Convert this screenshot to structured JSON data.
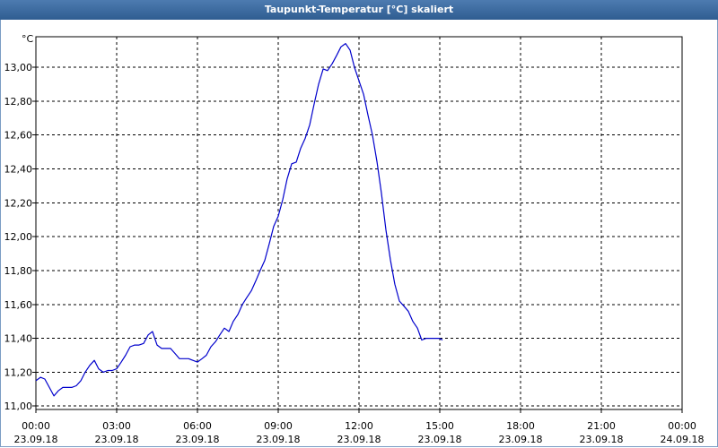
{
  "window": {
    "title": "Taupunkt-Temperatur [°C] skaliert"
  },
  "chart_data": {
    "type": "line",
    "title": "Taupunkt-Temperatur [°C] skaliert",
    "yunit": "°C",
    "ylim": [
      10.98,
      13.18
    ],
    "yticks": [
      "11,00",
      "11,20",
      "11,40",
      "11,60",
      "11,80",
      "12,00",
      "12,20",
      "12,40",
      "12,60",
      "12,80",
      "13,00"
    ],
    "xlim_hours": [
      0,
      24
    ],
    "xticks": [
      {
        "time": "00:00",
        "date": "23.09.18"
      },
      {
        "time": "03:00",
        "date": "23.09.18"
      },
      {
        "time": "06:00",
        "date": "23.09.18"
      },
      {
        "time": "09:00",
        "date": "23.09.18"
      },
      {
        "time": "12:00",
        "date": "23.09.18"
      },
      {
        "time": "15:00",
        "date": "23.09.18"
      },
      {
        "time": "18:00",
        "date": "23.09.18"
      },
      {
        "time": "21:00",
        "date": "23.09.18"
      },
      {
        "time": "00:00",
        "date": "24.09.18"
      }
    ],
    "grid": true,
    "colors": {
      "line": "#0000cc",
      "grid": "#000000",
      "title_bar": "#2f5d91"
    },
    "series": [
      {
        "x": [
          0.0,
          0.17,
          0.33,
          0.5,
          0.67,
          0.83,
          1.0,
          1.17,
          1.33,
          1.5,
          1.67,
          1.83,
          2.0,
          2.17,
          2.33,
          2.5,
          2.67,
          2.83,
          3.0,
          3.17,
          3.33,
          3.5,
          3.67,
          3.83,
          4.0,
          4.17,
          4.33,
          4.5,
          4.67,
          4.83,
          5.0,
          5.17,
          5.33,
          5.5,
          5.67,
          5.83,
          6.0,
          6.17,
          6.33,
          6.5,
          6.67,
          6.83,
          7.0,
          7.17,
          7.33,
          7.5,
          7.67,
          7.83,
          8.0,
          8.17,
          8.33,
          8.5,
          8.67,
          8.83,
          9.0,
          9.17,
          9.33,
          9.5,
          9.67,
          9.83,
          10.0,
          10.17,
          10.33,
          10.5,
          10.67,
          10.83,
          11.0,
          11.17,
          11.33,
          11.5,
          11.67,
          11.83,
          12.0,
          12.17,
          12.33,
          12.5,
          12.67,
          12.83,
          13.0,
          13.17,
          13.33,
          13.5,
          13.67,
          13.83,
          14.0,
          14.17,
          14.33,
          14.5,
          14.67,
          14.83,
          15.0,
          15.1
        ],
        "values": [
          11.15,
          11.17,
          11.16,
          11.11,
          11.06,
          11.09,
          11.11,
          11.11,
          11.11,
          11.12,
          11.15,
          11.2,
          11.24,
          11.27,
          11.22,
          11.2,
          11.21,
          11.21,
          11.22,
          11.26,
          11.3,
          11.35,
          11.36,
          11.36,
          11.37,
          11.42,
          11.44,
          11.36,
          11.34,
          11.34,
          11.34,
          11.31,
          11.28,
          11.28,
          11.28,
          11.27,
          11.26,
          11.28,
          11.3,
          11.35,
          11.38,
          11.42,
          11.46,
          11.44,
          11.5,
          11.54,
          11.6,
          11.64,
          11.68,
          11.74,
          11.8,
          11.86,
          11.96,
          12.06,
          12.12,
          12.22,
          12.34,
          12.43,
          12.44,
          12.52,
          12.58,
          12.66,
          12.78,
          12.9,
          12.99,
          12.98,
          13.02,
          13.07,
          13.12,
          13.14,
          13.1,
          13.0,
          12.92,
          12.84,
          12.72,
          12.6,
          12.44,
          12.26,
          12.04,
          11.86,
          11.72,
          11.62,
          11.59,
          11.56,
          11.5,
          11.46,
          11.39,
          11.4,
          11.4,
          11.4,
          11.4,
          11.39
        ]
      }
    ]
  }
}
